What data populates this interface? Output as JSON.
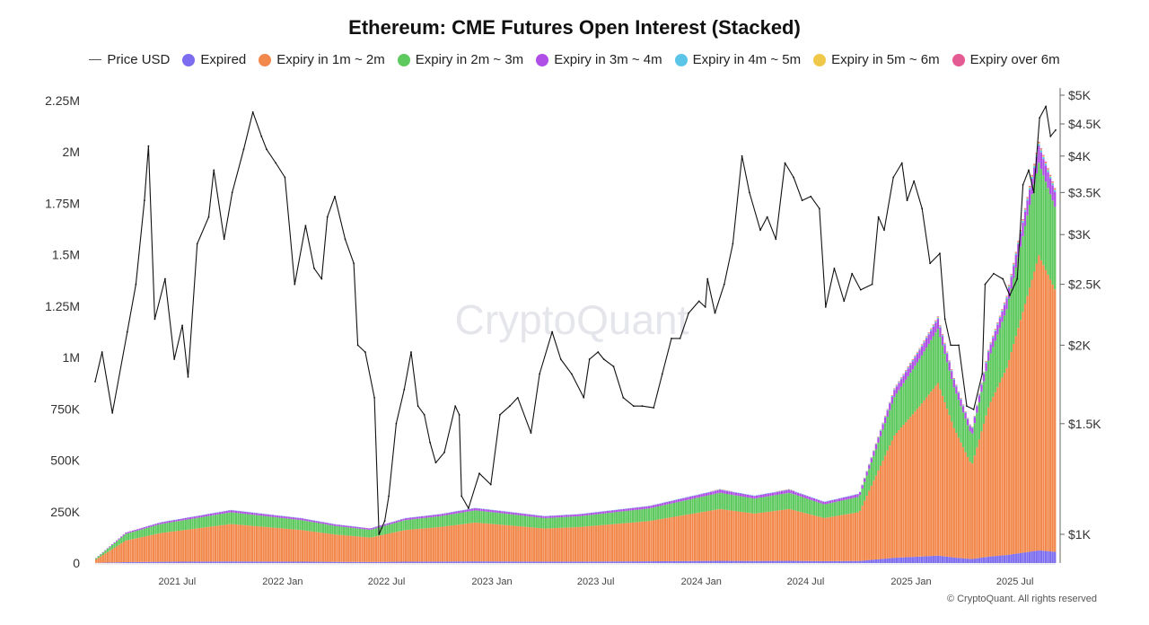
{
  "chart_data": {
    "type": "bar",
    "title": "Ethereum: CME Futures Open Interest (Stacked)",
    "watermark": "CryptoQuant",
    "copyright": "© CryptoQuant. All rights reserved",
    "xlabel": "",
    "ylabel": "",
    "legend_position": "top",
    "grid": false,
    "left_axis": {
      "ylim": [
        0,
        2250000
      ],
      "ticks": [
        0,
        250000,
        500000,
        750000,
        1000000,
        1250000,
        1500000,
        1750000,
        2000000,
        2250000
      ],
      "tick_labels": [
        "0",
        "250K",
        "500K",
        "750K",
        "1M",
        "1.25M",
        "1.5M",
        "1.75M",
        "2M",
        "2.25M"
      ]
    },
    "right_axis": {
      "scale": "log",
      "ylim": [
        900,
        5000
      ],
      "ticks": [
        1000,
        1500,
        2000,
        2500,
        3000,
        3500,
        4000,
        4500,
        5000
      ],
      "tick_labels": [
        "$1K",
        "$1.5K",
        "$2K",
        "$2.5K",
        "$3K",
        "$3.5K",
        "$4K",
        "$4.5K",
        "$5K"
      ]
    },
    "x_axis": {
      "ticks": [
        "2021-07-01",
        "2022-01-01",
        "2022-07-01",
        "2023-01-01",
        "2023-07-01",
        "2024-01-01",
        "2024-07-01",
        "2025-01-01",
        "2025-07-01"
      ],
      "tick_labels": [
        "2021 Jul",
        "2022 Jan",
        "2022 Jul",
        "2023 Jan",
        "2023 Jul",
        "2024 Jan",
        "2024 Jul",
        "2025 Jan",
        "2025 Jul"
      ],
      "range": [
        "2021-02-08",
        "2025-09-10"
      ]
    },
    "series": [
      {
        "name": "Price USD",
        "kind": "line",
        "axis": "right",
        "color": "#111111",
        "x": [
          "2021-02-08",
          "2021-02-20",
          "2021-03-10",
          "2021-04-05",
          "2021-04-20",
          "2021-05-05",
          "2021-05-12",
          "2021-05-23",
          "2021-06-10",
          "2021-06-26",
          "2021-07-10",
          "2021-07-20",
          "2021-08-05",
          "2021-08-25",
          "2021-09-03",
          "2021-09-21",
          "2021-10-05",
          "2021-10-25",
          "2021-11-10",
          "2021-11-25",
          "2021-12-04",
          "2021-12-20",
          "2022-01-05",
          "2022-01-22",
          "2022-02-10",
          "2022-02-25",
          "2022-03-10",
          "2022-03-20",
          "2022-04-02",
          "2022-04-20",
          "2022-05-05",
          "2022-05-12",
          "2022-05-25",
          "2022-06-10",
          "2022-06-18",
          "2022-06-28",
          "2022-07-05",
          "2022-07-18",
          "2022-08-01",
          "2022-08-13",
          "2022-08-25",
          "2022-09-05",
          "2022-09-15",
          "2022-09-25",
          "2022-10-10",
          "2022-10-29",
          "2022-11-05",
          "2022-11-09",
          "2022-11-21",
          "2022-12-10",
          "2022-12-30",
          "2023-01-15",
          "2023-02-01",
          "2023-02-15",
          "2023-03-10",
          "2023-03-25",
          "2023-04-16",
          "2023-05-01",
          "2023-05-20",
          "2023-06-10",
          "2023-06-20",
          "2023-07-05",
          "2023-07-15",
          "2023-08-01",
          "2023-08-18",
          "2023-09-05",
          "2023-09-20",
          "2023-10-10",
          "2023-10-25",
          "2023-11-10",
          "2023-11-25",
          "2023-12-10",
          "2023-12-28",
          "2024-01-08",
          "2024-01-12",
          "2024-01-25",
          "2024-02-10",
          "2024-02-25",
          "2024-03-12",
          "2024-03-25",
          "2024-04-13",
          "2024-04-25",
          "2024-05-10",
          "2024-05-26",
          "2024-06-10",
          "2024-06-25",
          "2024-07-10",
          "2024-07-25",
          "2024-08-05",
          "2024-08-20",
          "2024-09-06",
          "2024-09-20",
          "2024-10-05",
          "2024-10-25",
          "2024-11-05",
          "2024-11-15",
          "2024-12-01",
          "2024-12-16",
          "2024-12-25",
          "2025-01-06",
          "2025-01-20",
          "2025-02-03",
          "2025-02-20",
          "2025-03-01",
          "2025-03-11",
          "2025-03-25",
          "2025-04-08",
          "2025-04-20",
          "2025-05-05",
          "2025-05-10",
          "2025-05-25",
          "2025-06-10",
          "2025-06-22",
          "2025-07-05",
          "2025-07-15",
          "2025-07-25",
          "2025-08-03",
          "2025-08-13",
          "2025-08-24",
          "2025-09-01",
          "2025-09-10"
        ],
        "values": [
          1750,
          1950,
          1560,
          2100,
          2500,
          3400,
          4150,
          2200,
          2550,
          1900,
          2150,
          1780,
          2900,
          3200,
          3800,
          2950,
          3500,
          4100,
          4700,
          4300,
          4100,
          3900,
          3700,
          2500,
          3100,
          2650,
          2550,
          3200,
          3450,
          2950,
          2700,
          2000,
          1950,
          1650,
          1000,
          1050,
          1150,
          1500,
          1700,
          1950,
          1600,
          1550,
          1400,
          1300,
          1350,
          1600,
          1550,
          1150,
          1100,
          1250,
          1200,
          1550,
          1600,
          1650,
          1450,
          1800,
          2100,
          1900,
          1800,
          1650,
          1900,
          1950,
          1900,
          1850,
          1650,
          1600,
          1600,
          1590,
          1800,
          2050,
          2050,
          2250,
          2350,
          2300,
          2550,
          2250,
          2500,
          2900,
          4000,
          3500,
          3050,
          3200,
          2950,
          3900,
          3700,
          3400,
          3450,
          3300,
          2300,
          2650,
          2350,
          2600,
          2450,
          2500,
          3200,
          3050,
          3700,
          3900,
          3400,
          3650,
          3300,
          2700,
          2800,
          2200,
          2000,
          2000,
          1600,
          1580,
          1800,
          2500,
          2600,
          2550,
          2400,
          2550,
          3600,
          3800,
          3500,
          4600,
          4800,
          4300,
          4400
        ]
      },
      {
        "name": "Expired",
        "kind": "bar",
        "color": "#7b6cf0"
      },
      {
        "name": "Expiry in 1m ~ 2m",
        "kind": "bar",
        "color": "#f2884b"
      },
      {
        "name": "Expiry in 2m ~ 3m",
        "kind": "bar",
        "color": "#5ec95e"
      },
      {
        "name": "Expiry in 3m ~ 4m",
        "kind": "bar",
        "color": "#b04fe6"
      },
      {
        "name": "Expiry in 4m ~ 5m",
        "kind": "bar",
        "color": "#5bc5e8"
      },
      {
        "name": "Expiry in 5m ~ 6m",
        "kind": "bar",
        "color": "#efc84a"
      },
      {
        "name": "Expiry over 6m",
        "kind": "bar",
        "color": "#e45a92"
      }
    ],
    "stack_total": {
      "x": [
        "2021-02-08",
        "2021-04-01",
        "2021-06-01",
        "2021-08-01",
        "2021-10-01",
        "2021-12-01",
        "2022-02-01",
        "2022-04-01",
        "2022-06-01",
        "2022-08-01",
        "2022-10-01",
        "2022-12-01",
        "2023-02-01",
        "2023-04-01",
        "2023-06-01",
        "2023-08-01",
        "2023-10-01",
        "2023-12-01",
        "2024-02-01",
        "2024-04-01",
        "2024-06-01",
        "2024-08-01",
        "2024-10-01",
        "2024-12-01",
        "2025-01-15",
        "2025-02-15",
        "2025-03-15",
        "2025-04-15",
        "2025-05-15",
        "2025-06-15",
        "2025-07-15",
        "2025-08-10",
        "2025-09-10"
      ],
      "values": [
        25000,
        150000,
        200000,
        230000,
        260000,
        240000,
        220000,
        190000,
        170000,
        220000,
        240000,
        270000,
        250000,
        230000,
        240000,
        260000,
        280000,
        320000,
        360000,
        330000,
        360000,
        300000,
        340000,
        850000,
        1050000,
        1200000,
        900000,
        650000,
        1050000,
        1300000,
        1700000,
        2050000,
        1800000
      ]
    },
    "stack_shares": {
      "Expired": 0.03,
      "Expiry in 1m ~ 2m": 0.7,
      "Expiry in 2m ~ 3m": 0.22,
      "Expiry in 3m ~ 4m": 0.04,
      "Expiry in 4m ~ 5m": 0.005,
      "Expiry in 5m ~ 6m": 0.0025,
      "Expiry over 6m": 0.0025
    }
  }
}
